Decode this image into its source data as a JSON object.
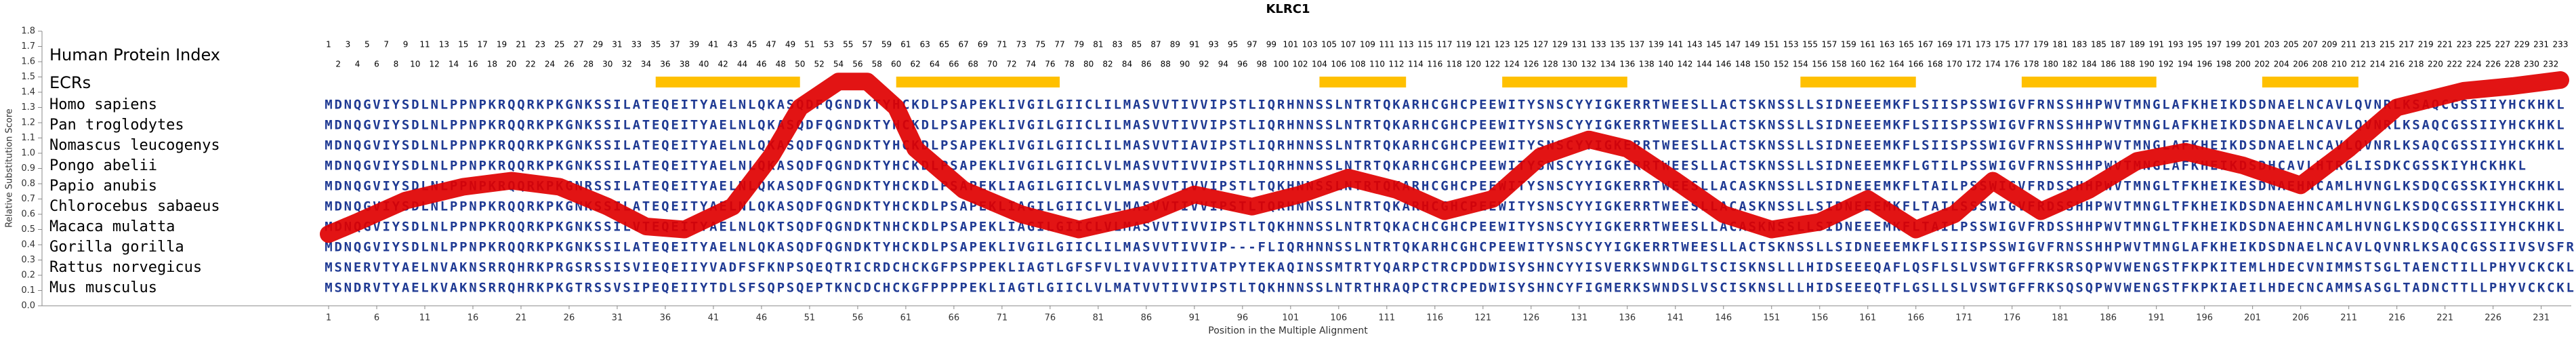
{
  "chart_data": {
    "type": "line",
    "title": "KLRC1",
    "x_label": "Position in the Multiple Alignment",
    "y_label": "Relative Substitution Score",
    "xlim": [
      1,
      233
    ],
    "ylim": [
      0,
      1.8
    ],
    "xticks": [
      1,
      6,
      11,
      16,
      21,
      26,
      31,
      36,
      41,
      46,
      51,
      56,
      61,
      66,
      71,
      76,
      81,
      86,
      91,
      96,
      101,
      106,
      111,
      116,
      121,
      126,
      131,
      136,
      141,
      146,
      151,
      156,
      161,
      166,
      171,
      176,
      181,
      186,
      191,
      196,
      201,
      206,
      211,
      216,
      221,
      226,
      231
    ],
    "yticks": [
      {
        "value": 0,
        "label": "0.0"
      },
      {
        "value": 0.1,
        "label": "0.1"
      },
      {
        "value": 0.2,
        "label": "0.2"
      },
      {
        "value": 0.3,
        "label": "0.3"
      },
      {
        "value": 0.4,
        "label": "0.4"
      },
      {
        "value": 0.5,
        "label": "0.5"
      },
      {
        "value": 0.6,
        "label": "0.6"
      },
      {
        "value": 0.7,
        "label": "0.7"
      },
      {
        "value": 0.8,
        "label": "0.8"
      },
      {
        "value": 0.9,
        "label": "0.9"
      },
      {
        "value": 1,
        "label": "1.0"
      },
      {
        "value": 1.1,
        "label": "1.1"
      },
      {
        "value": 1.2,
        "label": "1.2"
      },
      {
        "value": 1.3,
        "label": "1.3"
      },
      {
        "value": 1.4,
        "label": "1.4"
      },
      {
        "value": 1.5,
        "label": "1.5"
      },
      {
        "value": 1.6,
        "label": "1.6"
      },
      {
        "value": 1.7,
        "label": "1.7"
      },
      {
        "value": 1.8,
        "label": "1.8"
      }
    ],
    "color": "#e00000",
    "x": [
      1,
      4,
      9,
      15,
      20,
      25,
      30,
      34,
      38,
      43,
      47,
      50,
      54,
      57,
      60,
      62,
      67,
      73,
      79,
      86,
      91,
      97,
      102,
      107,
      112,
      117,
      122,
      127,
      132,
      136,
      141,
      146,
      151,
      156,
      161,
      166,
      170,
      174,
      179,
      184,
      189,
      194,
      200,
      206,
      211,
      216,
      223,
      228,
      233
    ],
    "values": [
      0.47,
      0.55,
      0.69,
      0.78,
      0.82,
      0.78,
      0.65,
      0.52,
      0.5,
      0.65,
      0.98,
      1.3,
      1.47,
      1.47,
      1.3,
      1.03,
      0.76,
      0.6,
      0.5,
      0.6,
      0.73,
      0.65,
      0.73,
      0.84,
      0.76,
      0.62,
      0.7,
      0.98,
      1.09,
      1.03,
      0.82,
      0.6,
      0.5,
      0.55,
      0.7,
      0.5,
      0.6,
      0.82,
      0.62,
      0.76,
      0.95,
      1.01,
      0.92,
      0.79,
      1.03,
      1.3,
      1.41,
      1.44,
      1.48
    ],
    "human_index_label": "Human Protein Index",
    "human_index": [
      [
        1,
        3,
        5,
        7,
        9,
        11,
        13,
        15,
        17,
        19,
        21,
        23,
        25,
        27,
        29,
        31,
        33,
        35,
        37,
        39,
        41,
        43,
        45,
        47,
        49,
        51,
        53,
        55,
        57,
        59,
        61,
        63,
        65,
        67,
        69,
        71,
        73,
        75,
        77,
        79,
        81,
        83,
        85,
        87,
        89,
        91,
        93,
        95,
        97,
        99,
        101,
        103,
        105,
        107,
        109,
        111,
        113,
        115,
        117,
        119,
        121,
        123,
        125,
        127,
        129,
        131,
        133,
        135,
        137,
        139,
        141,
        143,
        145,
        147,
        149,
        151,
        153,
        155,
        157,
        159,
        161,
        163,
        165,
        167,
        169,
        171,
        173,
        175,
        177,
        179,
        181,
        183,
        185,
        187,
        189,
        191,
        193,
        195,
        197,
        199,
        201,
        203,
        205,
        207,
        209,
        211,
        213,
        215,
        217,
        219,
        221,
        223,
        225,
        227,
        229,
        231,
        233
      ],
      [
        2,
        4,
        6,
        8,
        10,
        12,
        14,
        16,
        18,
        20,
        22,
        24,
        26,
        28,
        30,
        32,
        34,
        36,
        38,
        40,
        42,
        44,
        46,
        48,
        50,
        52,
        54,
        56,
        58,
        60,
        62,
        64,
        66,
        68,
        70,
        72,
        74,
        76,
        78,
        80,
        82,
        84,
        86,
        88,
        90,
        92,
        94,
        96,
        98,
        100,
        102,
        104,
        106,
        108,
        110,
        112,
        114,
        116,
        118,
        120,
        122,
        124,
        126,
        128,
        130,
        132,
        134,
        136,
        138,
        140,
        142,
        144,
        146,
        148,
        150,
        152,
        154,
        156,
        158,
        160,
        162,
        164,
        166,
        168,
        170,
        172,
        174,
        176,
        178,
        180,
        182,
        184,
        186,
        188,
        190,
        192,
        194,
        196,
        198,
        200,
        202,
        204,
        206,
        208,
        210,
        212,
        214,
        216,
        218,
        220,
        222,
        224,
        226,
        228,
        230,
        232
      ]
    ],
    "ecr_label": "ECRs",
    "ecr_color": "#ffc000",
    "ecrs": [
      [
        35,
        50
      ],
      [
        60,
        77
      ],
      [
        104,
        113
      ],
      [
        123,
        136
      ],
      [
        154,
        166
      ],
      [
        177,
        191
      ],
      [
        202,
        212
      ]
    ],
    "alignment": [
      {
        "species": "Homo sapiens",
        "sequence": "MDNQGVIYSDLNLPPNPKRQQRKPKGNKSSILATEQEITYAELNLQKASQDFQGNDKTYHCKDLPSAPEKLIVGILGIICLILMASVVTIVVIPSTLIQRHNNSSLNTRTQKARHCGHCPEEWITYSNSCYYIGKERRTWEESLLACTSKNSSLLSIDNEEEMKFLSIISPSSWIGVFRNSSHHPWVTMNGLAFKHEIKDSDNAELNCAVLQVNRLKSAQCGSSIIYHCKHKL"
      },
      {
        "species": "Pan troglodytes",
        "sequence": "MDNQGVIYSDLNLPPNPKRQQRKPKGNKSSILATEQEITYAELNLQKASQDFQGNDKTYHCKDLPSAPEKLIVGILGIICLILMASVVTIVVIPSTLIQRHNNSSLNTRTQKARHCGHCPEEWITYSNSCYYIGKERRTWEESLLACTSKNSSLLSIDNEEEMKFLSIISPSSWIGVFRNSSHHPWVTMNGLAFKHEIKDSDNAELNCAVLQVNRLKSAQCGSSIIYHCKHKL"
      },
      {
        "species": "Nomascus leucogenys",
        "sequence": "MDNQGVIYSDLNLPPNPKRQQRKPKGNKSSILATEQEITYAELNLQKASQDFQGNDKTYHCKDLPSAPEKLIVGILGIICLILMASVVTIAVIPSTLIQRHNNSSLNTRTQKARHCGHCPEEWITYSNSCYYIGKERRTWEESLLACTSKNSSLLSIDNEEEMKFLSIISPSSWIGVFRNSSHHPWVTMNGLAFKHEIKDSDNAELNCAVLQVNRLKSAQCGSSIIYHCKHKL"
      },
      {
        "species": "Pongo abelii",
        "sequence": "MDNQGVIYSDLNLPPNPKRQQRKPKGNKSSILATEQEITYAELNLQKASQDFQGNDKTYHCKDLPSAPEKLIVGILGIICLVLMASVVTIVVIPSTLIQRHNNSSLNTRTQKARHCGHCPEEWITYSNSCYYIGKERRTWEESLLACTSKNSSLLSIDNEEEMKFLGTILPSSWIGVFRNSSHHPWVTMNGLAFKHEIKDSDHCAVLHTRGLISDKCGSSKIYHCKHKL"
      },
      {
        "species": "Papio anubis",
        "sequence": "MDNQGVIYSDLNLPPNPKRQQRKPKGNRSSILATEQEITYAELNLQKASQDFQGNDKTYHCKDLPSAPEKLIAGILGIICLVLMASVVTIVVIPSTLTQKHNNSSLNTRTQKARHCGHCPEEWITYSNSCYYIGKERRTWEESLLACASKNSSLLSIDNEEEMKFLTAILPSSWIGVFRDSSHHPWVTMNGLTFKHEIKESDNAEHNCAMLHVNGLKSDQCGSSKIYHCKHKL"
      },
      {
        "species": "Chlorocebus sabaeus",
        "sequence": "MDNQGVIYSDLNLPPNPKRQQRKPKGNKSSILATEQEITYAELNLQKASQDFQGNDKTYHCKDLPSAPEKLIAGILGIICLVLMASVVTIVVIPSTLTQRHNNSSLNTRTQKARHCGHCPEEWITYSNSCYYIGKERRTWEESLLACASKNSSLLSIDNEEEMKFLTAILSSSWIGVFRDSSHHPWVTMNGLTFKHEIKDSDNAEHNCAMLHVNGLKSDQCGSSIIYHCKHKL"
      },
      {
        "species": "Macaca mulatta",
        "sequence": "MDNQGVIYSDLNLPPNPKRQQRKPKGNKSSILVTEQEITYAELNLQKTSQDFQGNDKTNHCKDLPSAPEKLIAGILGIICLVLMASVVTIVVIPSTLTQKHNNSSLNTRTQKACHCGHCPEEWITYSNSCYYIGKERRTWEESLLACASKNSSLLSIDNEEEMKFLTAILPSSWIGVFRDSSHHPWVTMNGLTFKHEIKDSDNAEHNCAMLHVNGLKSDQCGSSIIYHCKHKL"
      },
      {
        "species": "Gorilla gorilla",
        "sequence": "MDNQGVIYSDLNLPPNPKRQQRKPKGNKSSILATEQEITYAELNLQKASQDFQGNDKTYHCKDLPSAPEKLIVGILGIICLILMASVVTIVVIP---FLIQRHNNSSLNTRTQKARHCGHCPEEWITYSNSCYYIGKERRTWEESLLACTSKNSSLLSIDNEEEMKFLSIISPSSWIGVFRNSSHHPWVTMNGLAFKHEIKDSDNAELNCAVLQVNRLKSAQCGSSIIVSVSFR"
      },
      {
        "species": "Rattus norvegicus",
        "sequence": "MSNERVTYAELNVAKNSRRQHRKPRGSRSSISVIEQEIIYVADFSFKNPSQEQTRICRDCHCKGFPSPPEKLIAGTLGFSFVLIVAVVIITVATPYTEKAQINSSMTRTYQARPCTRCPDDWISYSHNCYYISVERKSWNDGLTSCISKNSLLLHIDSEEEQAFLQSFLSLVSWTGFFRKSRSQPWVWENGSTFKPKITEMLHDECVNIMMSTSGLTAENCTILLPHYVCKCKL"
      },
      {
        "species": "Mus musculus",
        "sequence": "MSNDRVTYAELKVAKNSRRQHRKPKGTRSSVSIPEQEIIYTDLSFSQPSQEPTKNCDCHCKGFPPPPEKLIAGTLGIICLVLMATVVTIVVIPSTLTQKHNNSSLNTRTHRAQPCTRCPEDWISYSHNCYFIGMERKSWNDSLVSCISKNSLLLHIDSEEEQTFLGSLLSLVSWTGFFRKSQSQPWVWENGSTFKPKIAEILHDECNCAMMSASGLTADNCTTLLPHYVCKCKL"
      }
    ]
  }
}
